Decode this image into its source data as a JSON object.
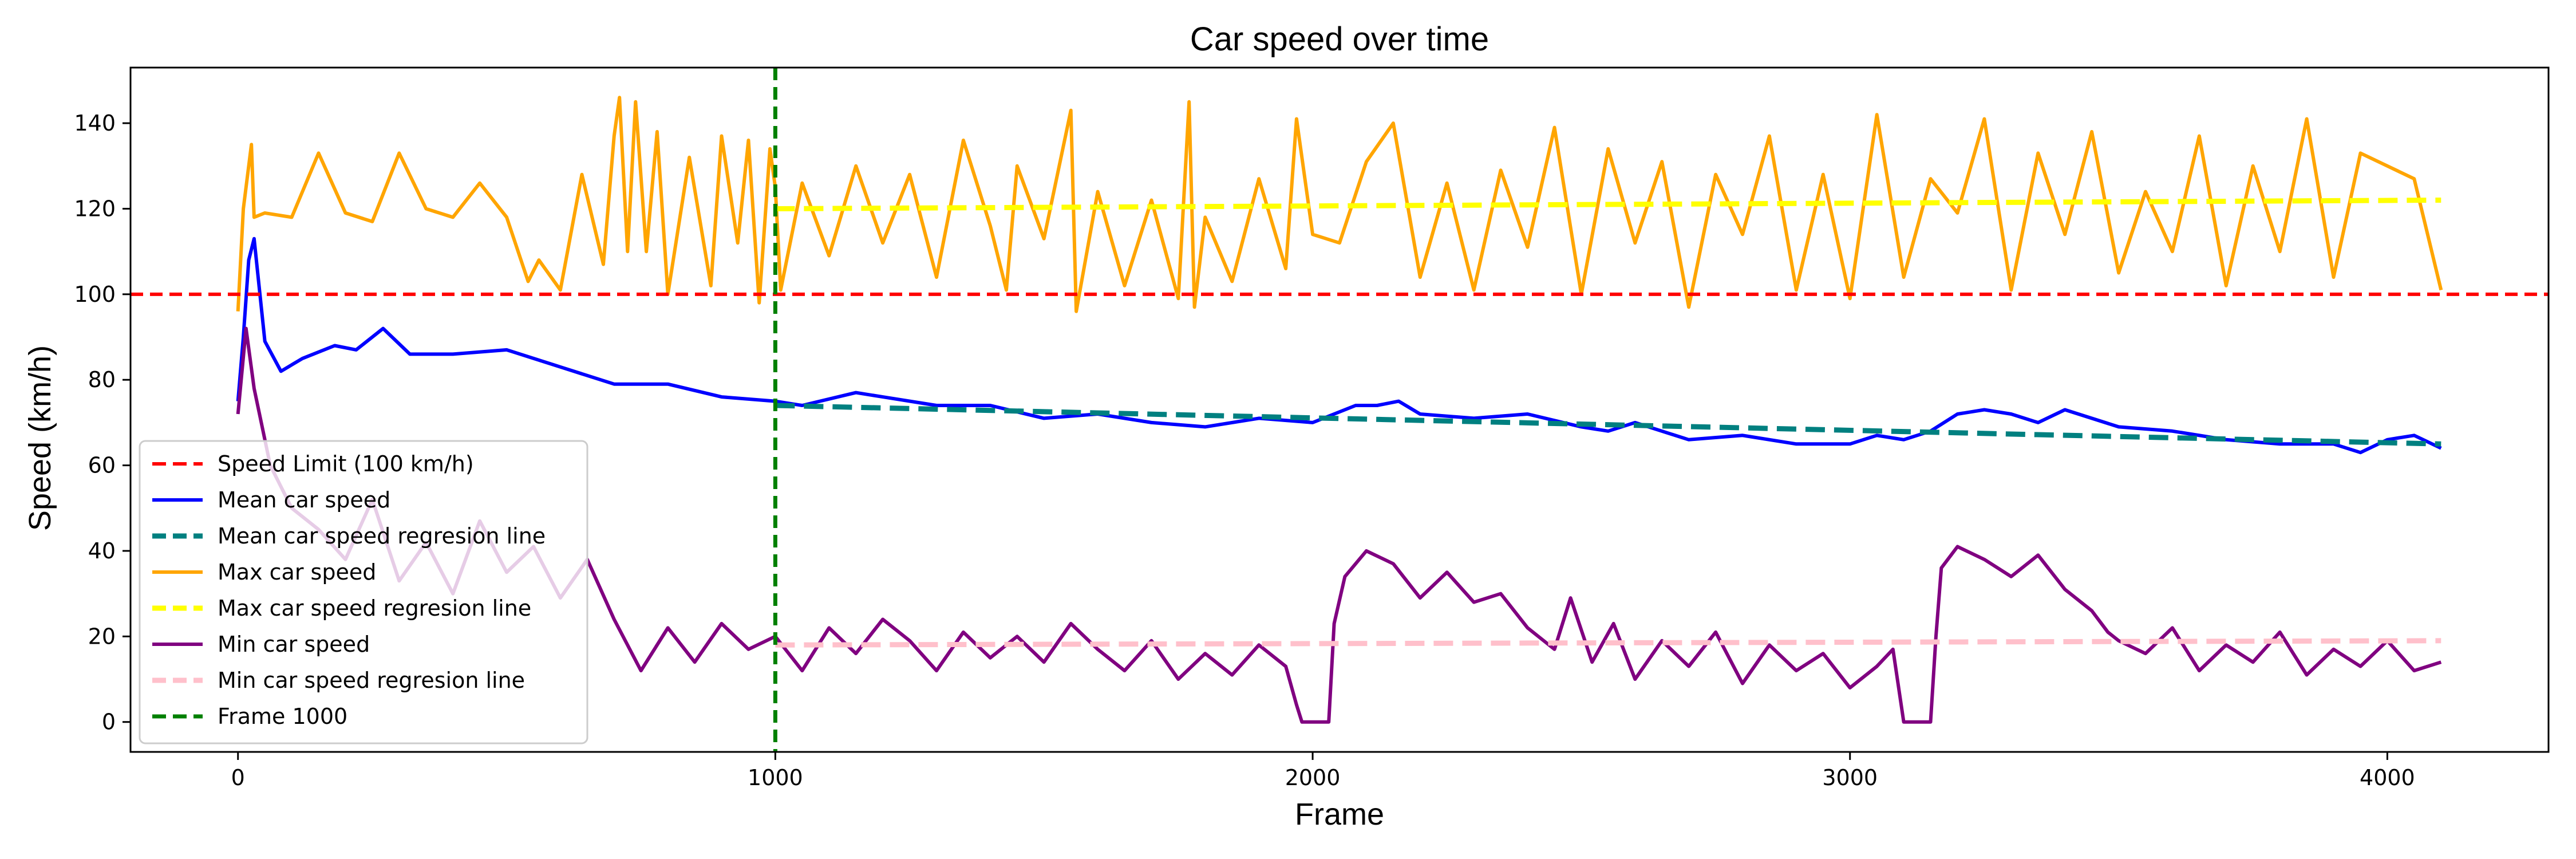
{
  "chart_data": {
    "type": "line",
    "title": "Car speed over time",
    "xlabel": "Frame",
    "ylabel": "Speed (km/h)",
    "xlim": [
      -200,
      4300
    ],
    "ylim": [
      -7,
      153
    ],
    "xticks": [
      0,
      1000,
      2000,
      3000,
      4000
    ],
    "yticks": [
      0,
      20,
      40,
      60,
      80,
      100,
      120,
      140
    ],
    "grid": false,
    "legend_position": "lower-left",
    "speed_limit": {
      "name": "Speed Limit (100 km/h)",
      "value": 100,
      "color": "#ff0000",
      "style": "dashed"
    },
    "frame_marker": {
      "name": "Frame 1000",
      "x": 1000,
      "color": "#008000",
      "style": "dashed"
    },
    "series": [
      {
        "name": "Mean car speed",
        "color": "#0000ff",
        "style": "solid",
        "x": [
          0,
          10,
          20,
          30,
          50,
          80,
          120,
          180,
          220,
          270,
          320,
          400,
          500,
          600,
          700,
          800,
          900,
          1000,
          1050,
          1150,
          1200,
          1300,
          1400,
          1500,
          1600,
          1700,
          1800,
          1900,
          2000,
          2080,
          2120,
          2160,
          2200,
          2300,
          2400,
          2500,
          2550,
          2600,
          2700,
          2800,
          2900,
          3000,
          3050,
          3100,
          3150,
          3200,
          3250,
          3300,
          3350,
          3400,
          3500,
          3600,
          3700,
          3800,
          3900,
          3950,
          4000,
          4050,
          4100
        ],
        "values": [
          75,
          90,
          108,
          113,
          89,
          82,
          85,
          88,
          87,
          92,
          86,
          86,
          87,
          83,
          79,
          79,
          76,
          75,
          74,
          77,
          76,
          74,
          74,
          71,
          72,
          70,
          69,
          71,
          70,
          74,
          74,
          75,
          72,
          71,
          72,
          69,
          68,
          70,
          66,
          67,
          65,
          65,
          67,
          66,
          68,
          72,
          73,
          72,
          70,
          73,
          69,
          68,
          66,
          65,
          65,
          63,
          66,
          67,
          64
        ]
      },
      {
        "name": "Mean car speed regresion line",
        "color": "#008080",
        "style": "dashed",
        "x": [
          1000,
          4100
        ],
        "values": [
          74,
          65
        ]
      },
      {
        "name": "Max car speed",
        "color": "#ffa500",
        "style": "solid",
        "x": [
          0,
          10,
          25,
          30,
          50,
          100,
          150,
          200,
          250,
          300,
          350,
          400,
          450,
          500,
          540,
          560,
          600,
          640,
          680,
          700,
          710,
          725,
          740,
          760,
          780,
          800,
          840,
          880,
          900,
          930,
          950,
          970,
          990,
          1000,
          1010,
          1050,
          1100,
          1150,
          1200,
          1250,
          1300,
          1350,
          1400,
          1430,
          1450,
          1500,
          1550,
          1560,
          1600,
          1650,
          1700,
          1750,
          1770,
          1780,
          1800,
          1850,
          1900,
          1950,
          1970,
          2000,
          2050,
          2100,
          2150,
          2200,
          2250,
          2300,
          2350,
          2400,
          2450,
          2500,
          2550,
          2600,
          2650,
          2700,
          2750,
          2800,
          2850,
          2900,
          2950,
          3000,
          3050,
          3100,
          3150,
          3200,
          3250,
          3300,
          3350,
          3400,
          3450,
          3500,
          3550,
          3600,
          3650,
          3700,
          3750,
          3800,
          3850,
          3900,
          3950,
          4000,
          4050,
          4100
        ],
        "values": [
          96,
          120,
          135,
          118,
          119,
          118,
          133,
          119,
          117,
          133,
          120,
          118,
          126,
          118,
          103,
          108,
          101,
          128,
          107,
          137,
          146,
          110,
          145,
          110,
          138,
          100,
          132,
          102,
          137,
          112,
          136,
          98,
          134,
          125,
          101,
          126,
          109,
          130,
          112,
          128,
          104,
          136,
          116,
          101,
          130,
          113,
          143,
          96,
          124,
          102,
          122,
          99,
          145,
          97,
          118,
          103,
          127,
          106,
          141,
          114,
          112,
          131,
          140,
          104,
          126,
          101,
          129,
          111,
          139,
          100,
          134,
          112,
          131,
          97,
          128,
          114,
          137,
          101,
          128,
          99,
          142,
          104,
          127,
          119,
          141,
          101,
          133,
          114,
          138,
          105,
          124,
          110,
          137,
          102,
          130,
          110,
          141,
          104,
          133,
          130,
          127,
          101
        ]
      },
      {
        "name": "Max car speed regresion line",
        "color": "#ffff00",
        "style": "dashed",
        "x": [
          1000,
          4100
        ],
        "values": [
          120,
          122
        ]
      },
      {
        "name": "Min car speed",
        "color": "#800080",
        "style": "solid",
        "x": [
          0,
          15,
          30,
          60,
          100,
          150,
          200,
          250,
          300,
          350,
          400,
          450,
          500,
          550,
          600,
          650,
          700,
          750,
          800,
          850,
          900,
          950,
          1000,
          1050,
          1100,
          1150,
          1200,
          1250,
          1300,
          1350,
          1400,
          1450,
          1500,
          1550,
          1600,
          1650,
          1700,
          1750,
          1800,
          1850,
          1900,
          1950,
          1970,
          1980,
          2000,
          2030,
          2040,
          2060,
          2100,
          2150,
          2200,
          2250,
          2300,
          2350,
          2400,
          2450,
          2480,
          2520,
          2560,
          2600,
          2650,
          2700,
          2750,
          2800,
          2850,
          2900,
          2950,
          3000,
          3050,
          3080,
          3100,
          3120,
          3150,
          3160,
          3170,
          3200,
          3250,
          3300,
          3350,
          3400,
          3450,
          3480,
          3500,
          3550,
          3600,
          3650,
          3700,
          3750,
          3800,
          3850,
          3900,
          3950,
          4000,
          4050,
          4100
        ],
        "values": [
          72,
          92,
          78,
          60,
          50,
          45,
          38,
          52,
          33,
          42,
          30,
          47,
          35,
          41,
          29,
          38,
          24,
          12,
          22,
          14,
          23,
          17,
          20,
          12,
          22,
          16,
          24,
          19,
          12,
          21,
          15,
          20,
          14,
          23,
          17,
          12,
          19,
          10,
          16,
          11,
          18,
          13,
          4,
          0,
          0,
          0,
          23,
          34,
          40,
          37,
          29,
          35,
          28,
          30,
          22,
          17,
          29,
          14,
          23,
          10,
          19,
          13,
          21,
          9,
          18,
          12,
          16,
          8,
          13,
          17,
          0,
          0,
          0,
          20,
          36,
          41,
          38,
          34,
          39,
          31,
          26,
          21,
          19,
          16,
          22,
          12,
          18,
          14,
          21,
          11,
          17,
          13,
          19,
          12,
          14
        ]
      },
      {
        "name": "Min car speed regresion line",
        "color": "#ffc0cb",
        "style": "dashed",
        "x": [
          1000,
          4100
        ],
        "values": [
          18,
          19
        ]
      }
    ]
  }
}
